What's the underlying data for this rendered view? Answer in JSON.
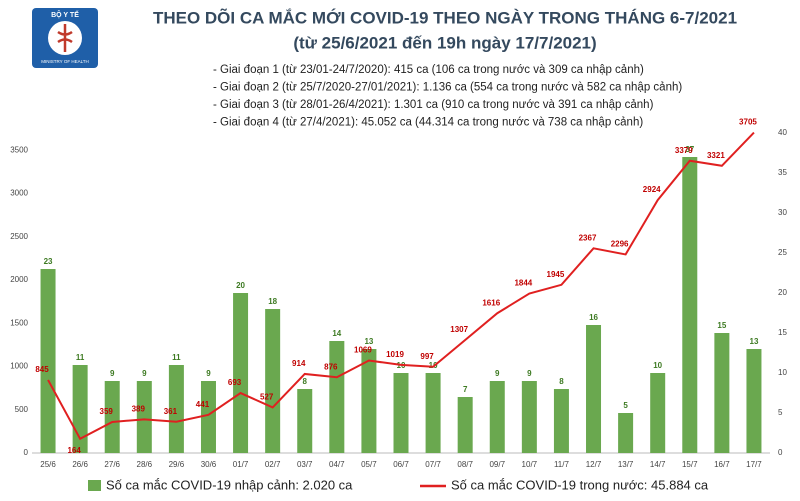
{
  "logo": {
    "top": "BỘ Y TẾ",
    "bottom": "MINISTRY OF HEALTH"
  },
  "chart_data": {
    "type": "combo",
    "title": "THEO DÕI CA MẮC MỚI COVID-19 THEO NGÀY TRONG THÁNG 6-7/2021",
    "subtitle": "(từ 25/6/2021 đến 19h ngày 17/7/2021)",
    "annotations": [
      "- Giai đoạn 1 (từ 23/01-24/7/2020): 415 ca (106 ca trong nước và 309 ca nhập cảnh)",
      "- Giai đoạn 2 (từ 25/7/2020-27/01/2021): 1.136 ca (554 ca trong nước và 582 ca nhập cảnh)",
      "- Giai đoạn 3 (từ 28/01-26/4/2021): 1.301 ca (910 ca trong nước và 391 ca nhập cảnh)",
      "- Giai đoạn 4 (từ 27/4/2021): 45.052 ca (44.314 ca trong nước và 738 ca nhập cảnh)"
    ],
    "categories": [
      "25/6",
      "26/6",
      "27/6",
      "28/6",
      "29/6",
      "30/6",
      "01/7",
      "02/7",
      "03/7",
      "04/7",
      "05/7",
      "06/7",
      "07/7",
      "08/7",
      "09/7",
      "10/7",
      "11/7",
      "12/7",
      "13/7",
      "14/7",
      "15/7",
      "16/7",
      "17/7"
    ],
    "series": [
      {
        "name": "Số ca mắc COVID-19 nhập cảnh: 2.020 ca",
        "type": "bar",
        "axis": "y2",
        "color": "#6aa84f",
        "label_color": "#3d7a22",
        "values": [
          23,
          11,
          9,
          9,
          11,
          9,
          20,
          18,
          8,
          14,
          13,
          10,
          10,
          7,
          9,
          9,
          8,
          16,
          5,
          10,
          37,
          15,
          13
        ]
      },
      {
        "name": "Số ca mắc COVID-19 trong nước: 45.884 ca",
        "type": "line",
        "color": "#e02020",
        "label_color": "#c00000",
        "values": [
          845,
          164,
          359,
          389,
          361,
          441,
          693,
          527,
          914,
          876,
          1069,
          1019,
          997,
          1307,
          1616,
          1844,
          1945,
          2367,
          2296,
          2924,
          3379,
          3321,
          3705
        ]
      }
    ],
    "ylim": [
      0,
      3700
    ],
    "yticks": [
      0,
      500,
      1000,
      1500,
      2000,
      2500,
      3000,
      3500
    ],
    "y2lim": [
      0,
      40
    ],
    "y2ticks": [
      0,
      5,
      10,
      15,
      20,
      25,
      30,
      35,
      40
    ]
  }
}
